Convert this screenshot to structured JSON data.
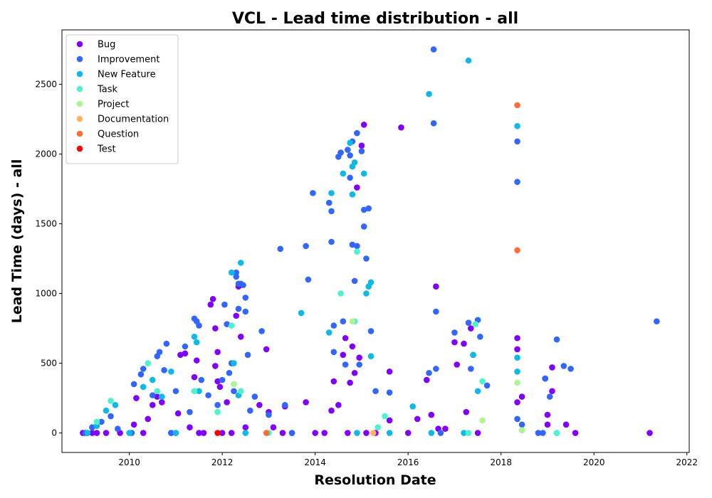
{
  "chart_data": {
    "type": "scatter",
    "title": "VCL - Lead time distribution - all",
    "xlabel": "Resolution Date",
    "ylabel": "Lead Time (days) - all",
    "xlim": [
      2008.55,
      2022.05
    ],
    "ylim": [
      -140,
      2890
    ],
    "xticks": [
      2010,
      2012,
      2014,
      2016,
      2018,
      2020,
      2022
    ],
    "yticks": [
      0,
      500,
      1000,
      1500,
      2000,
      2500
    ],
    "grid": false,
    "legend_position": "top-left",
    "series": [
      {
        "name": "Bug",
        "color": "#8000ff",
        "points": [
          [
            2009.0,
            0
          ],
          [
            2009.1,
            0
          ],
          [
            2009.2,
            0
          ],
          [
            2009.3,
            0
          ],
          [
            2009.5,
            0
          ],
          [
            2009.8,
            0
          ],
          [
            2010.1,
            60
          ],
          [
            2010.15,
            250
          ],
          [
            2010.3,
            0
          ],
          [
            2010.4,
            100
          ],
          [
            2010.5,
            200
          ],
          [
            2010.6,
            260
          ],
          [
            2010.7,
            220
          ],
          [
            2010.9,
            0
          ],
          [
            2011.0,
            0
          ],
          [
            2011.05,
            140
          ],
          [
            2011.1,
            560
          ],
          [
            2011.2,
            570
          ],
          [
            2011.3,
            40
          ],
          [
            2011.4,
            400
          ],
          [
            2011.45,
            520
          ],
          [
            2011.5,
            0
          ],
          [
            2011.6,
            0
          ],
          [
            2011.75,
            920
          ],
          [
            2011.8,
            960
          ],
          [
            2011.85,
            750
          ],
          [
            2011.85,
            480
          ],
          [
            2011.9,
            580
          ],
          [
            2011.9,
            370
          ],
          [
            2011.95,
            330
          ],
          [
            2012.0,
            0
          ],
          [
            2012.1,
            220
          ],
          [
            2012.2,
            0
          ],
          [
            2012.3,
            840
          ],
          [
            2012.35,
            1050
          ],
          [
            2012.4,
            690
          ],
          [
            2012.5,
            40
          ],
          [
            2012.8,
            200
          ],
          [
            2012.95,
            600
          ],
          [
            2013.0,
            150
          ],
          [
            2013.1,
            40
          ],
          [
            2013.3,
            0
          ],
          [
            2013.35,
            190
          ],
          [
            2013.5,
            0
          ],
          [
            2013.8,
            220
          ],
          [
            2014.0,
            0
          ],
          [
            2014.2,
            0
          ],
          [
            2014.35,
            160
          ],
          [
            2014.4,
            370
          ],
          [
            2014.5,
            200
          ],
          [
            2014.55,
            2010
          ],
          [
            2014.6,
            560
          ],
          [
            2014.65,
            680
          ],
          [
            2014.7,
            0
          ],
          [
            2014.75,
            360
          ],
          [
            2014.8,
            620
          ],
          [
            2014.85,
            430
          ],
          [
            2014.9,
            1760
          ],
          [
            2014.95,
            540
          ],
          [
            2015.0,
            2060
          ],
          [
            2015.05,
            2210
          ],
          [
            2015.1,
            0
          ],
          [
            2015.3,
            0
          ],
          [
            2015.6,
            440
          ],
          [
            2015.6,
            90
          ],
          [
            2015.85,
            2190
          ],
          [
            2016.0,
            0
          ],
          [
            2016.2,
            100
          ],
          [
            2016.4,
            380
          ],
          [
            2016.5,
            130
          ],
          [
            2016.6,
            1050
          ],
          [
            2016.65,
            30
          ],
          [
            2016.8,
            30
          ],
          [
            2017.0,
            650
          ],
          [
            2017.05,
            490
          ],
          [
            2017.2,
            640
          ],
          [
            2017.25,
            150
          ],
          [
            2017.35,
            750
          ],
          [
            2017.5,
            0
          ],
          [
            2018.35,
            680
          ],
          [
            2018.35,
            600
          ],
          [
            2018.35,
            220
          ],
          [
            2018.45,
            260
          ],
          [
            2018.95,
            390
          ],
          [
            2019.0,
            130
          ],
          [
            2019.0,
            60
          ],
          [
            2019.1,
            470
          ],
          [
            2019.1,
            300
          ],
          [
            2019.4,
            60
          ],
          [
            2019.6,
            0
          ],
          [
            2021.2,
            0
          ]
        ]
      },
      {
        "name": "Improvement",
        "color": "#3366ff",
        "points": [
          [
            2009.05,
            0
          ],
          [
            2009.2,
            40
          ],
          [
            2009.4,
            80
          ],
          [
            2009.6,
            120
          ],
          [
            2009.75,
            30
          ],
          [
            2010.05,
            0
          ],
          [
            2010.1,
            350
          ],
          [
            2010.25,
            420
          ],
          [
            2010.3,
            460
          ],
          [
            2010.5,
            270
          ],
          [
            2010.6,
            550
          ],
          [
            2010.65,
            580
          ],
          [
            2010.75,
            450
          ],
          [
            2010.8,
            640
          ],
          [
            2010.9,
            0
          ],
          [
            2011.0,
            300
          ],
          [
            2011.2,
            620
          ],
          [
            2011.3,
            150
          ],
          [
            2011.4,
            820
          ],
          [
            2011.45,
            800
          ],
          [
            2011.5,
            770
          ],
          [
            2011.55,
            380
          ],
          [
            2011.7,
            270
          ],
          [
            2011.9,
            200
          ],
          [
            2012.0,
            380
          ],
          [
            2012.05,
            920
          ],
          [
            2012.1,
            780
          ],
          [
            2012.15,
            430
          ],
          [
            2012.2,
            500
          ],
          [
            2012.25,
            300
          ],
          [
            2012.3,
            1150
          ],
          [
            2012.3,
            1120
          ],
          [
            2012.35,
            1070
          ],
          [
            2012.35,
            890
          ],
          [
            2012.4,
            1070
          ],
          [
            2012.45,
            1060
          ],
          [
            2012.5,
            970
          ],
          [
            2012.5,
            870
          ],
          [
            2012.55,
            560
          ],
          [
            2012.6,
            160
          ],
          [
            2012.7,
            260
          ],
          [
            2012.85,
            730
          ],
          [
            2013.0,
            130
          ],
          [
            2013.25,
            1320
          ],
          [
            2013.35,
            200
          ],
          [
            2013.5,
            0
          ],
          [
            2013.8,
            1340
          ],
          [
            2013.85,
            1100
          ],
          [
            2013.95,
            1720
          ],
          [
            2014.3,
            1650
          ],
          [
            2014.35,
            1590
          ],
          [
            2014.35,
            1370
          ],
          [
            2014.4,
            770
          ],
          [
            2014.4,
            580
          ],
          [
            2014.5,
            1980
          ],
          [
            2014.55,
            2010
          ],
          [
            2014.6,
            800
          ],
          [
            2014.65,
            490
          ],
          [
            2014.7,
            2030
          ],
          [
            2014.75,
            1990
          ],
          [
            2014.75,
            1830
          ],
          [
            2014.8,
            2090
          ],
          [
            2014.8,
            1350
          ],
          [
            2014.85,
            1090
          ],
          [
            2014.9,
            2150
          ],
          [
            2014.9,
            1340
          ],
          [
            2014.95,
            490
          ],
          [
            2015.0,
            2020
          ],
          [
            2015.05,
            1600
          ],
          [
            2015.05,
            1480
          ],
          [
            2015.1,
            1250
          ],
          [
            2015.15,
            1610
          ],
          [
            2015.2,
            730
          ],
          [
            2015.3,
            300
          ],
          [
            2015.6,
            290
          ],
          [
            2016.45,
            430
          ],
          [
            2016.55,
            2750
          ],
          [
            2016.55,
            2220
          ],
          [
            2016.6,
            870
          ],
          [
            2016.6,
            460
          ],
          [
            2016.7,
            0
          ],
          [
            2017.0,
            720
          ],
          [
            2017.3,
            790
          ],
          [
            2017.35,
            460
          ],
          [
            2017.4,
            560
          ],
          [
            2017.5,
            810
          ],
          [
            2017.55,
            690
          ],
          [
            2017.7,
            340
          ],
          [
            2018.35,
            2090
          ],
          [
            2018.35,
            1800
          ],
          [
            2018.35,
            100
          ],
          [
            2018.45,
            60
          ],
          [
            2018.8,
            0
          ],
          [
            2018.9,
            0
          ],
          [
            2018.95,
            390
          ],
          [
            2019.05,
            260
          ],
          [
            2019.2,
            670
          ],
          [
            2019.35,
            480
          ],
          [
            2019.5,
            460
          ],
          [
            2021.35,
            800
          ]
        ]
      },
      {
        "name": "New Feature",
        "color": "#0fb9e6",
        "points": [
          [
            2009.1,
            0
          ],
          [
            2009.3,
            50
          ],
          [
            2009.5,
            160
          ],
          [
            2009.7,
            200
          ],
          [
            2010.0,
            0
          ],
          [
            2010.3,
            330
          ],
          [
            2010.5,
            380
          ],
          [
            2010.7,
            260
          ],
          [
            2010.9,
            440
          ],
          [
            2011.0,
            0
          ],
          [
            2011.4,
            690
          ],
          [
            2011.45,
            650
          ],
          [
            2011.5,
            300
          ],
          [
            2012.2,
            1150
          ],
          [
            2012.25,
            500
          ],
          [
            2012.35,
            270
          ],
          [
            2012.4,
            1220
          ],
          [
            2012.5,
            0
          ],
          [
            2013.7,
            860
          ],
          [
            2014.3,
            720
          ],
          [
            2014.35,
            1720
          ],
          [
            2014.6,
            1860
          ],
          [
            2014.75,
            2080
          ],
          [
            2014.8,
            1910
          ],
          [
            2014.8,
            1710
          ],
          [
            2014.85,
            1940
          ],
          [
            2014.9,
            0
          ],
          [
            2015.05,
            1860
          ],
          [
            2015.1,
            1000
          ],
          [
            2015.15,
            1050
          ],
          [
            2015.2,
            1080
          ],
          [
            2015.2,
            550
          ],
          [
            2015.6,
            0
          ],
          [
            2016.1,
            190
          ],
          [
            2016.45,
            2430
          ],
          [
            2016.5,
            0
          ],
          [
            2017.2,
            0
          ],
          [
            2017.3,
            2670
          ],
          [
            2017.4,
            560
          ],
          [
            2017.5,
            300
          ],
          [
            2018.35,
            2200
          ],
          [
            2018.35,
            540
          ],
          [
            2018.35,
            440
          ],
          [
            2018.45,
            20
          ],
          [
            2019.2,
            0
          ]
        ]
      },
      {
        "name": "Task",
        "color": "#4df3ce",
        "points": [
          [
            2009.3,
            80
          ],
          [
            2009.6,
            230
          ],
          [
            2010.4,
            500
          ],
          [
            2010.6,
            300
          ],
          [
            2011.4,
            300
          ],
          [
            2011.9,
            150
          ],
          [
            2012.2,
            770
          ],
          [
            2012.25,
            350
          ],
          [
            2012.4,
            300
          ],
          [
            2013.0,
            0
          ],
          [
            2014.55,
            1000
          ],
          [
            2014.85,
            800
          ],
          [
            2014.9,
            1300
          ],
          [
            2015.35,
            40
          ],
          [
            2015.5,
            120
          ],
          [
            2017.3,
            0
          ],
          [
            2017.45,
            780
          ],
          [
            2017.6,
            370
          ],
          [
            2019.2,
            0
          ]
        ]
      },
      {
        "name": "Project",
        "color": "#b2f396",
        "points": [
          [
            2012.25,
            350
          ],
          [
            2014.8,
            800
          ],
          [
            2017.6,
            90
          ],
          [
            2018.35,
            360
          ],
          [
            2018.45,
            20
          ]
        ]
      },
      {
        "name": "Documentation",
        "color": "#ffb360",
        "points": [
          [
            2015.25,
            0
          ]
        ]
      },
      {
        "name": "Question",
        "color": "#ff6d38",
        "points": [
          [
            2012.95,
            0
          ],
          [
            2018.35,
            2350
          ],
          [
            2018.35,
            1310
          ]
        ]
      },
      {
        "name": "Test",
        "color": "#ff0000",
        "points": [
          [
            2011.9,
            0
          ]
        ]
      }
    ]
  }
}
